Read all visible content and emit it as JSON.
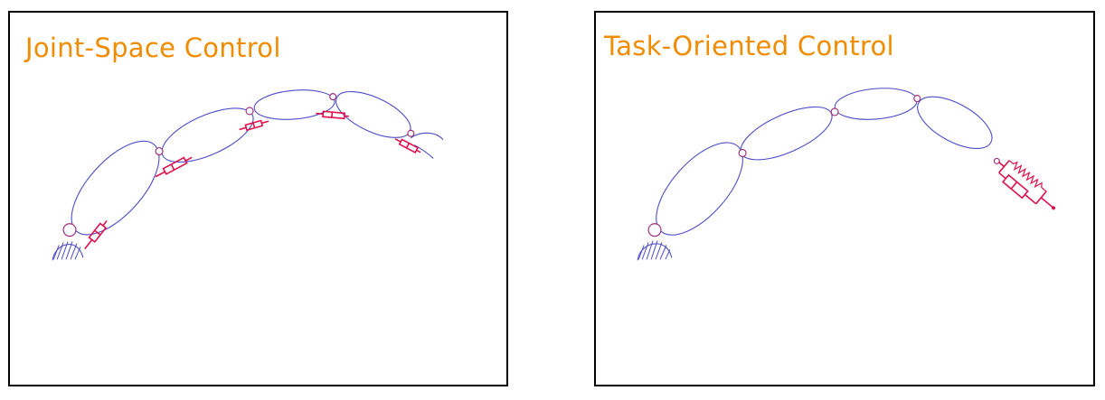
{
  "panels": {
    "left": {
      "title": "Joint-Space Control"
    },
    "right": {
      "title": "Task-Oriented Control"
    }
  },
  "colors": {
    "title": "#f08c00",
    "limb_outline": "#4c4cc8",
    "joint": "#a0307a",
    "actuator": "#e0104a",
    "frame": "#000000"
  },
  "icons": {
    "arm_links": "ellipse-link-icon",
    "joints": "joint-circle-icon",
    "base": "hatched-base-icon",
    "joint_actuator": "linear-actuator-icon",
    "task_element": "spring-damper-icon"
  }
}
